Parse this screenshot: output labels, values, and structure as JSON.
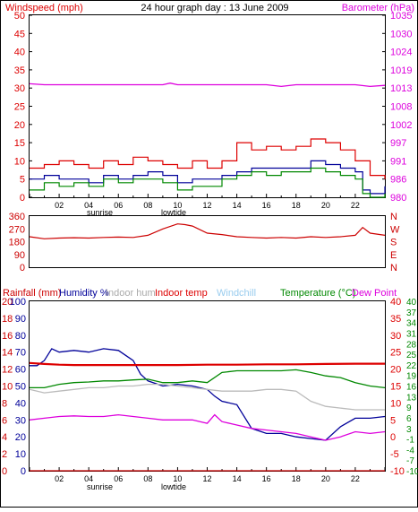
{
  "title": "24 hour graph day : 13 June 2009",
  "x_ticks": [
    "02",
    "04",
    "06",
    "08",
    "10",
    "12",
    "14",
    "16",
    "18",
    "20",
    "22"
  ],
  "events": {
    "sunrise": "sunrise",
    "lowtide": "lowtide"
  },
  "colors": {
    "wind": "#dd0000",
    "gust": "#dd0000",
    "avg": "#000099",
    "dir": "#cc0000",
    "baro": "#dd00dd",
    "humidity": "#000099",
    "indoor_hum": "#bbbbbb",
    "indoor_temp": "#dd0000",
    "windchill": "#99ccee",
    "temp": "#008800",
    "dew": "#dd00dd",
    "rain": "#cc0000"
  },
  "chart_data": [
    {
      "type": "line",
      "left_axis_label": "Windspeed (mph)",
      "right_axis_label": "Barometer (hPa)",
      "left_ticks": [
        "0",
        "5",
        "10",
        "15",
        "20",
        "25",
        "30",
        "35",
        "40",
        "45",
        "50"
      ],
      "right_ticks": [
        "980",
        "986",
        "991",
        "997",
        "1002",
        "1008",
        "1013",
        "1019",
        "1024",
        "1030",
        "1035"
      ],
      "ylim_left": [
        0,
        50
      ],
      "ylim_right": [
        980,
        1035
      ],
      "series": [
        {
          "key": "gust",
          "color": "#dd0000",
          "x": [
            0,
            1,
            2,
            3,
            4,
            5,
            6,
            7,
            8,
            9,
            10,
            11,
            12,
            13,
            14,
            15,
            16,
            17,
            18,
            19,
            20,
            21,
            22,
            23,
            24
          ],
          "values": [
            8,
            9,
            10,
            9,
            8,
            10,
            9,
            11,
            10,
            9,
            8,
            10,
            8,
            10,
            15,
            13,
            14,
            13,
            14,
            16,
            15,
            13,
            10,
            6,
            5
          ]
        },
        {
          "key": "avg",
          "color": "#000099",
          "x": [
            0,
            1,
            2,
            3,
            4,
            5,
            6,
            7,
            8,
            9,
            10,
            11,
            12,
            13,
            14,
            15,
            16,
            17,
            18,
            19,
            20,
            21,
            22,
            22.5,
            23,
            24
          ],
          "values": [
            5,
            6,
            5,
            5,
            4,
            6,
            5,
            6,
            7,
            6,
            4,
            5,
            5,
            6,
            7,
            8,
            8,
            8,
            8,
            10,
            9,
            8,
            7,
            2,
            1,
            3
          ]
        },
        {
          "key": "lull",
          "color": "#008800",
          "x": [
            0,
            1,
            2,
            3,
            4,
            5,
            6,
            7,
            8,
            9,
            10,
            11,
            12,
            13,
            14,
            15,
            16,
            17,
            18,
            19,
            20,
            21,
            22,
            22.5,
            23,
            24
          ],
          "values": [
            2,
            4,
            3,
            4,
            3,
            5,
            4,
            5,
            5,
            4,
            2,
            3,
            3,
            5,
            6,
            7,
            6,
            7,
            7,
            8,
            7,
            6,
            5,
            1,
            0,
            1
          ]
        },
        {
          "key": "baro",
          "color": "#dd00dd",
          "axis": "right",
          "x": [
            0,
            1,
            2,
            3,
            4,
            5,
            6,
            7,
            8,
            9,
            9.5,
            10,
            11,
            12,
            13,
            14,
            15,
            16,
            17,
            18,
            19,
            20,
            21,
            22,
            23,
            24
          ],
          "values": [
            1014.3,
            1014,
            1014,
            1014,
            1014,
            1014,
            1014,
            1014,
            1014,
            1014,
            1014.5,
            1014,
            1014,
            1014,
            1014,
            1014,
            1014,
            1014,
            1013.5,
            1014,
            1014,
            1014,
            1014,
            1014,
            1013.5,
            1013.8
          ]
        }
      ]
    },
    {
      "type": "line",
      "left_ticks": [
        "0",
        "90",
        "180",
        "270",
        "360"
      ],
      "right_ticks": [
        "N",
        "E",
        "S",
        "W",
        "N"
      ],
      "ylim": [
        0,
        360
      ],
      "series": [
        {
          "key": "direction",
          "color": "#cc0000",
          "x": [
            0,
            1,
            2,
            3,
            4,
            5,
            6,
            7,
            8,
            9,
            10,
            10.5,
            11,
            12,
            13,
            14,
            15,
            16,
            17,
            18,
            19,
            20,
            21,
            22,
            22.5,
            23,
            24
          ],
          "values": [
            215,
            200,
            205,
            208,
            205,
            210,
            212,
            210,
            225,
            270,
            305,
            300,
            290,
            240,
            230,
            215,
            210,
            205,
            210,
            205,
            215,
            210,
            215,
            225,
            280,
            240,
            225
          ]
        }
      ]
    },
    {
      "type": "line",
      "legend": [
        "Rainfall (mm)",
        "Humidity %",
        "Indoor hum",
        "Indoor temp",
        "Windchill",
        "Temperature (°C)",
        "Dew Point"
      ],
      "left_ticks": [
        "0",
        "2",
        "4",
        "6",
        "8",
        "10",
        "12",
        "14",
        "16",
        "18",
        "20"
      ],
      "left_ticks2": [
        "0",
        "10",
        "20",
        "30",
        "40",
        "50",
        "60",
        "70",
        "80",
        "90",
        "100"
      ],
      "right_ticks": [
        "-10",
        "-5",
        "0",
        "5",
        "10",
        "15",
        "20",
        "25",
        "30",
        "35",
        "40"
      ],
      "right_ticks2": [
        "-10",
        "-7",
        "-4",
        "-1",
        "3",
        "6",
        "9",
        "13",
        "16",
        "19",
        "22",
        "25",
        "28",
        "31",
        "34",
        "37",
        "40"
      ],
      "ylim_left": [
        0,
        20
      ],
      "ylim_humidity": [
        0,
        100
      ],
      "ylim_temp": [
        -10,
        40
      ],
      "series": [
        {
          "key": "humidity",
          "color": "#000099",
          "axis": "humidity",
          "x": [
            0,
            0.5,
            1,
            1.5,
            2,
            3,
            4,
            5,
            6,
            7,
            7.5,
            8,
            9,
            10,
            11,
            12,
            12.5,
            13,
            14,
            15,
            16,
            17,
            18,
            19,
            20,
            21,
            22,
            23,
            24
          ],
          "values": [
            62,
            62,
            65,
            72,
            70,
            71,
            70,
            72,
            71,
            65,
            57,
            53,
            50,
            51,
            50,
            48,
            44,
            41,
            39,
            25,
            22,
            22,
            20,
            19,
            18,
            26,
            31,
            31,
            32
          ]
        },
        {
          "key": "indoor_hum",
          "color": "#bbbbbb",
          "axis": "humidity",
          "x": [
            0,
            1,
            2,
            3,
            4,
            5,
            6,
            7,
            8,
            9,
            10,
            11,
            12,
            13,
            14,
            15,
            16,
            17,
            18,
            19,
            20,
            21,
            22,
            23,
            24
          ],
          "values": [
            48,
            46,
            47,
            48,
            49,
            49,
            50,
            50,
            51,
            51,
            50,
            49,
            48,
            47,
            47,
            47,
            48,
            48,
            47,
            41,
            38,
            37,
            36,
            36,
            36
          ]
        },
        {
          "key": "indoor_temp",
          "color": "#dd0000",
          "axis": "temp",
          "x": [
            0,
            1,
            2,
            3,
            4,
            6,
            8,
            10,
            12,
            14,
            16,
            18,
            20,
            22,
            24
          ],
          "values": [
            21.8,
            21.5,
            21.3,
            21.2,
            21.2,
            21.2,
            21.2,
            21.2,
            21.3,
            21.3,
            21.4,
            21.4,
            21.5,
            21.6,
            21.6
          ]
        },
        {
          "key": "temperature",
          "color": "#008800",
          "axis": "temp",
          "x": [
            0,
            1,
            2,
            3,
            4,
            5,
            6,
            7,
            8,
            9,
            10,
            11,
            12,
            13,
            14,
            15,
            16,
            17,
            18,
            19,
            20,
            21,
            22,
            23,
            24
          ],
          "values": [
            14.5,
            14.5,
            15.5,
            16,
            16.2,
            16.5,
            16.5,
            16.8,
            17,
            16,
            16,
            16.5,
            16,
            19,
            19.5,
            19.5,
            19.5,
            19.5,
            19.8,
            19,
            18,
            17.5,
            16,
            15,
            14.5
          ]
        },
        {
          "key": "dewpoint",
          "color": "#dd00dd",
          "axis": "temp",
          "x": [
            0,
            1,
            2,
            3,
            4,
            5,
            6,
            7,
            8,
            9,
            10,
            11,
            12,
            12.5,
            13,
            14,
            15,
            16,
            17,
            18,
            19,
            20,
            21,
            22,
            23,
            24
          ],
          "values": [
            5,
            5.5,
            6,
            6.2,
            6,
            6,
            6.5,
            6,
            5.5,
            5,
            5,
            5,
            4,
            6.5,
            4.5,
            3.5,
            2.5,
            2,
            1.5,
            1,
            0,
            -1,
            0,
            1.5,
            1,
            1.5
          ]
        },
        {
          "key": "rainfall",
          "color": "#cc0000",
          "axis": "left",
          "x": [
            0,
            24
          ],
          "values": [
            0,
            0
          ]
        }
      ]
    }
  ]
}
